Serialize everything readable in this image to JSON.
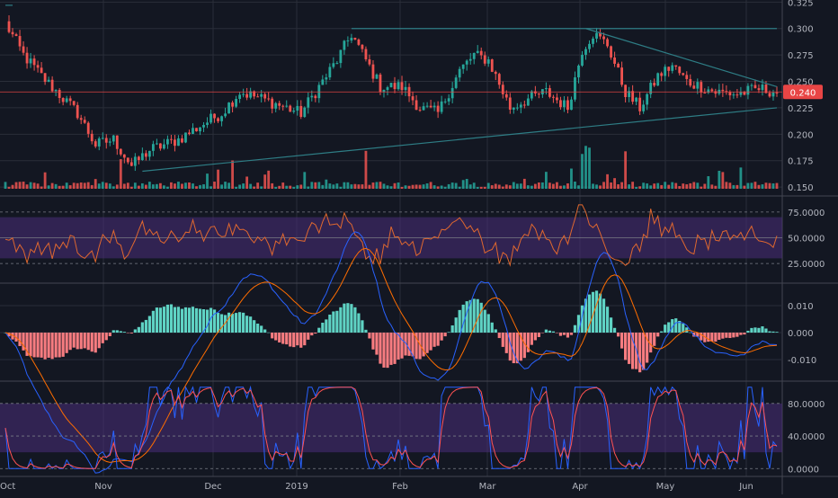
{
  "chart_data": {
    "type": "candlestick-with-indicators",
    "colors": {
      "background": "#131722",
      "grid": "#2a2e39",
      "up": "#26a69a",
      "down": "#ef5350",
      "trendline": "#2e7d85",
      "price_line": "#e84545",
      "rsi": "#e0682f",
      "rsi_band": "#4a2e7a",
      "macd": "#2962ff",
      "signal": "#ff6d00",
      "stoch_k": "#2962ff",
      "stoch_d": "#ff5252",
      "stoch_band": "#4a2e7a",
      "axis_text": "#b2b5be"
    },
    "x_ticks": [
      "Oct",
      "Nov",
      "Dec",
      "2019",
      "Feb",
      "Mar",
      "Apr",
      "May",
      "Jun"
    ],
    "price": {
      "ylim": [
        0.145,
        0.327
      ],
      "ticks": [
        "0.150",
        "0.175",
        "0.200",
        "0.225",
        "0.250",
        "0.275",
        "0.300",
        "0.325"
      ],
      "last_price_label": "0.240",
      "last_price": 0.24,
      "bars": 215,
      "anchors": [
        [
          0,
          0.305
        ],
        [
          5,
          0.275
        ],
        [
          10,
          0.255
        ],
        [
          20,
          0.22
        ],
        [
          25,
          0.19
        ],
        [
          30,
          0.195
        ],
        [
          35,
          0.17
        ],
        [
          40,
          0.185
        ],
        [
          48,
          0.195
        ],
        [
          55,
          0.21
        ],
        [
          60,
          0.22
        ],
        [
          65,
          0.24
        ],
        [
          70,
          0.235
        ],
        [
          78,
          0.225
        ],
        [
          82,
          0.22
        ],
        [
          88,
          0.25
        ],
        [
          92,
          0.27
        ],
        [
          96,
          0.295
        ],
        [
          100,
          0.27
        ],
        [
          104,
          0.245
        ],
        [
          110,
          0.245
        ],
        [
          115,
          0.225
        ],
        [
          120,
          0.22
        ],
        [
          126,
          0.26
        ],
        [
          130,
          0.275
        ],
        [
          134,
          0.27
        ],
        [
          140,
          0.225
        ],
        [
          146,
          0.235
        ],
        [
          150,
          0.24
        ],
        [
          156,
          0.225
        ],
        [
          160,
          0.28
        ],
        [
          163,
          0.295
        ],
        [
          167,
          0.285
        ],
        [
          172,
          0.24
        ],
        [
          176,
          0.225
        ],
        [
          181,
          0.255
        ],
        [
          185,
          0.265
        ],
        [
          189,
          0.25
        ],
        [
          193,
          0.245
        ],
        [
          197,
          0.24
        ],
        [
          203,
          0.238
        ],
        [
          209,
          0.243
        ],
        [
          214,
          0.24
        ]
      ],
      "trendlines": [
        {
          "from": [
            0,
            0.322
          ],
          "to": [
            2,
            0.322
          ]
        },
        {
          "from": [
            96,
            0.3
          ],
          "to": [
            214,
            0.3
          ]
        },
        {
          "from": [
            161,
            0.3
          ],
          "to": [
            214,
            0.245
          ]
        },
        {
          "from": [
            38,
            0.165
          ],
          "to": [
            214,
            0.225
          ]
        }
      ],
      "volume_max": 1.0
    },
    "rsi": {
      "ylim": [
        12,
        88
      ],
      "ticks": [
        "25.0000",
        "50.0000",
        "75.0000"
      ],
      "tick_values": [
        25,
        50,
        75
      ],
      "band": [
        30,
        70
      ]
    },
    "macd": {
      "ylim": [
        -0.016,
        0.016
      ],
      "ticks": [
        "-0.010",
        "0.000",
        "0.010"
      ],
      "tick_values": [
        -0.01,
        0,
        0.01
      ]
    },
    "stoch": {
      "ylim": [
        -3,
        103
      ],
      "ticks": [
        "0.0000",
        "40.0000",
        "80.0000"
      ],
      "tick_values": [
        0,
        40,
        80
      ],
      "band": [
        20,
        80
      ]
    }
  }
}
